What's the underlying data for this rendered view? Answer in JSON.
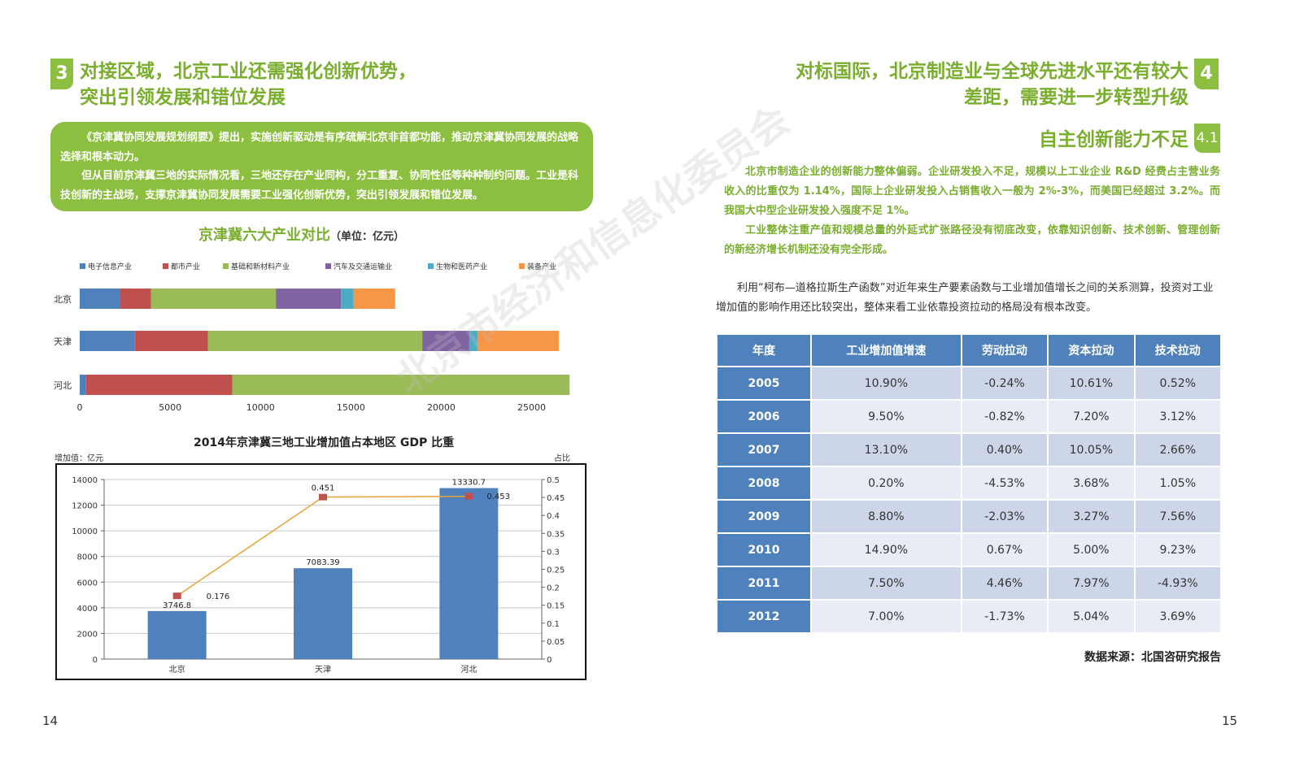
{
  "left_page": {
    "section_number": "3",
    "heading_line1": "对接区域，北京工业还需强化创新优势，",
    "heading_line2": "突出引领发展和错位发展",
    "intro_p1": "《京津冀协同发展规划纲要》提出，实施创新驱动是有序疏解北京非首都功能，推动京津冀协同发展的战略选择和根本动力。",
    "intro_p2": "但从目前京津冀三地的实际情况看，三地还存在产业同构，分工重复、协同性低等种种制约问题。工业是科技创新的主战场，支撑京津冀协同发展需要工业强化创新优势，突出引领发展和错位发展。",
    "page_number": "14"
  },
  "chart_data": [
    {
      "type": "bar",
      "orientation": "horizontal-stacked",
      "title": "京津冀六大产业对比",
      "unit": "（单位：亿元）",
      "categories": [
        "北京",
        "天津",
        "河北"
      ],
      "series": [
        {
          "name": "电子信息产业",
          "color": "#4f81bd",
          "values": [
            2250,
            3050,
            350
          ]
        },
        {
          "name": "都市产业",
          "color": "#c0504d",
          "values": [
            1700,
            4050,
            8100
          ]
        },
        {
          "name": "基础和新材料产业",
          "color": "#9bbb59",
          "values": [
            6900,
            11850,
            18650
          ]
        },
        {
          "name": "汽车及交通运输业",
          "color": "#8064a2",
          "values": [
            3600,
            2600,
            0
          ]
        },
        {
          "name": "生物和医药产业",
          "color": "#4bacc6",
          "values": [
            700,
            450,
            0
          ]
        },
        {
          "name": "装备产业",
          "color": "#f79646",
          "values": [
            2300,
            4500,
            0
          ]
        }
      ],
      "x_ticks": [
        "0",
        "5000",
        "10000",
        "15000",
        "20000",
        "25000"
      ],
      "xlim": [
        0,
        27000
      ],
      "legend": "top"
    },
    {
      "type": "bar",
      "title": "2014年京津冀三地工业增加值占本地区 GDP 比重",
      "ylabel": "增加值：亿元",
      "y2label": "占比",
      "categories": [
        "北京",
        "天津",
        "河北"
      ],
      "series": [
        {
          "name": "增加值",
          "type": "bar",
          "color": "#4f81bd",
          "values": [
            3746.8,
            7083.39,
            13330.7
          ],
          "labels": [
            "3746.8",
            "7083.39",
            "13330.7"
          ]
        },
        {
          "name": "占比",
          "type": "line",
          "color": "#e8a33a",
          "marker_color": "#c0504d",
          "values": [
            0.176,
            0.451,
            0.453
          ],
          "labels": [
            "0.176",
            "0.451",
            "0.453"
          ]
        }
      ],
      "y_ticks": [
        "0",
        "2000",
        "4000",
        "6000",
        "8000",
        "10000",
        "12000",
        "14000"
      ],
      "y2_ticks": [
        "0",
        "0.05",
        "0.1",
        "0.15",
        "0.2",
        "0.25",
        "0.3",
        "0.35",
        "0.4",
        "0.45",
        "0.5"
      ],
      "ylim": [
        0,
        14000
      ],
      "y2lim": [
        0,
        0.5
      ]
    }
  ],
  "right_page": {
    "section_number": "4",
    "heading_line1": "对标国际，北京制造业与全球先进水平还有较大",
    "heading_line2": "差距，需要进一步转型升级",
    "sub_number": "4.1",
    "sub_heading": "自主创新能力不足",
    "para1": "北京市制造企业的创新能力整体偏弱。企业研发投入不足，规模以上工业企业 R&D 经费占主营业务收入的比重仅为 1.14%，国际上企业研发投入占销售收入一般为 2%-3%，而美国已经超过 3.2%。而我国大中型企业研发投入强度不足 1%。",
    "para2": "工业整体注重产值和规模总量的外延式扩张路径没有彻底改变，依靠知识创新、技术创新、管理创新的新经济增长机制还没有完全形成。",
    "para3": "利用“柯布—道格拉斯生产函数”对近年来生产要素函数与工业增加值增长之间的关系测算，投资对工业增加值的影响作用还比较突出，整体来看工业依靠投资拉动的格局没有根本改变。",
    "table_headers": [
      "年度",
      "工业增加值增速",
      "劳动拉动",
      "资本拉动",
      "技术拉动"
    ],
    "table_rows": [
      [
        "2005",
        "10.90%",
        "-0.24%",
        "10.61%",
        "0.52%"
      ],
      [
        "2006",
        "9.50%",
        "-0.82%",
        "7.20%",
        "3.12%"
      ],
      [
        "2007",
        "13.10%",
        "0.40%",
        "10.05%",
        "2.66%"
      ],
      [
        "2008",
        "0.20%",
        "-4.53%",
        "3.68%",
        "1.05%"
      ],
      [
        "2009",
        "8.80%",
        "-2.03%",
        "3.27%",
        "7.56%"
      ],
      [
        "2010",
        "14.90%",
        "0.67%",
        "5.00%",
        "9.23%"
      ],
      [
        "2011",
        "7.50%",
        "4.46%",
        "7.97%",
        "-4.93%"
      ],
      [
        "2012",
        "7.00%",
        "-1.73%",
        "5.04%",
        "3.69%"
      ]
    ],
    "source": "数据来源：北国咨研究报告",
    "page_number": "15"
  },
  "watermark": "北京市经济和信息化委员会"
}
